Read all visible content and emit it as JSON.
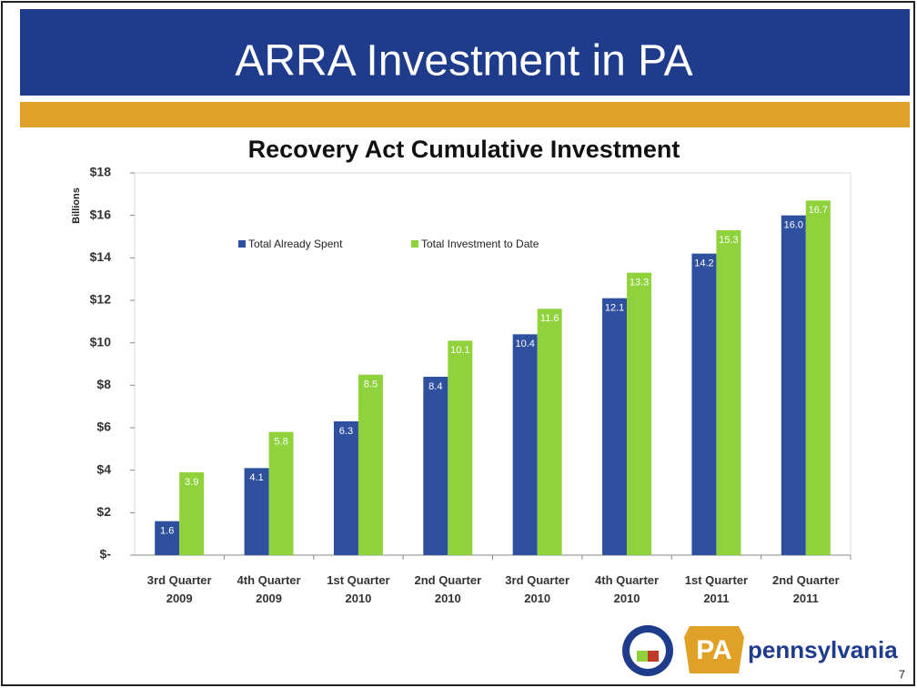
{
  "slide_title": "ARRA Investment in PA",
  "page_number": "7",
  "logo": {
    "badge": "PA",
    "name": "pennsylvania"
  },
  "chart_data": {
    "type": "bar",
    "title": "Recovery Act Cumulative Investment",
    "y_label": "Billions",
    "categories": [
      "3rd Quarter\n2009",
      "4th Quarter\n2009",
      "1st Quarter\n2010",
      "2nd Quarter\n2010",
      "3rd Quarter\n2010",
      "4th Quarter\n2010",
      "1st Quarter\n2011",
      "2nd Quarter\n2011"
    ],
    "series": [
      {
        "name": "Total Already Spent",
        "color": "#2f4f9f",
        "values": [
          1.6,
          4.1,
          6.3,
          8.4,
          10.4,
          12.1,
          14.2,
          16.0
        ],
        "value_labels": [
          "1.6",
          "4.1",
          "6.3",
          "8.4",
          "10.4",
          "12.1",
          "14.2",
          "16.0"
        ]
      },
      {
        "name": "Total Investment to Date",
        "color": "#8fd23c",
        "values": [
          3.9,
          5.8,
          8.5,
          10.1,
          11.6,
          13.3,
          15.3,
          16.7
        ],
        "value_labels": [
          "3.9",
          "5.8",
          "8.5",
          "10.1",
          "11.6",
          "13.3",
          "15.3",
          "16.7"
        ]
      }
    ],
    "ylim": [
      0,
      18
    ],
    "yticks": [
      {
        "value": 0,
        "label": "$-"
      },
      {
        "value": 2,
        "label": "$2"
      },
      {
        "value": 4,
        "label": "$4"
      },
      {
        "value": 6,
        "label": "$6"
      },
      {
        "value": 8,
        "label": "$8"
      },
      {
        "value": 10,
        "label": "$10"
      },
      {
        "value": 12,
        "label": "$12"
      },
      {
        "value": 14,
        "label": "$14"
      },
      {
        "value": 16,
        "label": "$16"
      },
      {
        "value": 18,
        "label": "$18"
      }
    ],
    "legend": "top"
  }
}
